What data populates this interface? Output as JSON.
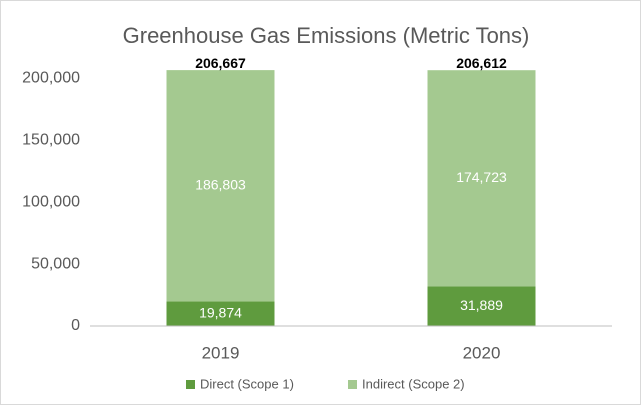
{
  "chart_data": {
    "type": "stacked_bar",
    "title": "Greenhouse Gas Emissions (Metric Tons)",
    "categories": [
      "2019",
      "2020"
    ],
    "series": [
      {
        "name": "Direct (Scope 1)",
        "color": "#5f9b3e",
        "values": [
          19874,
          31889
        ],
        "value_labels": [
          "19,874",
          "31,889"
        ]
      },
      {
        "name": "Indirect (Scope 2)",
        "color": "#a4c990",
        "values": [
          186803,
          174723
        ],
        "value_labels": [
          "186,803",
          "174,723"
        ]
      }
    ],
    "totals": [
      206667,
      206612
    ],
    "total_labels": [
      "206,667",
      "206,612"
    ],
    "ylim": [
      0,
      210000
    ],
    "yticks": [
      0,
      {
        "value": 50000,
        "label": "50,000"
      },
      {
        "value": 100000,
        "label": "100,000"
      },
      {
        "value": 150000,
        "label": "150,000"
      },
      {
        "value": 200000,
        "label": "200,000"
      }
    ],
    "grid": false,
    "legend": "bottom"
  }
}
